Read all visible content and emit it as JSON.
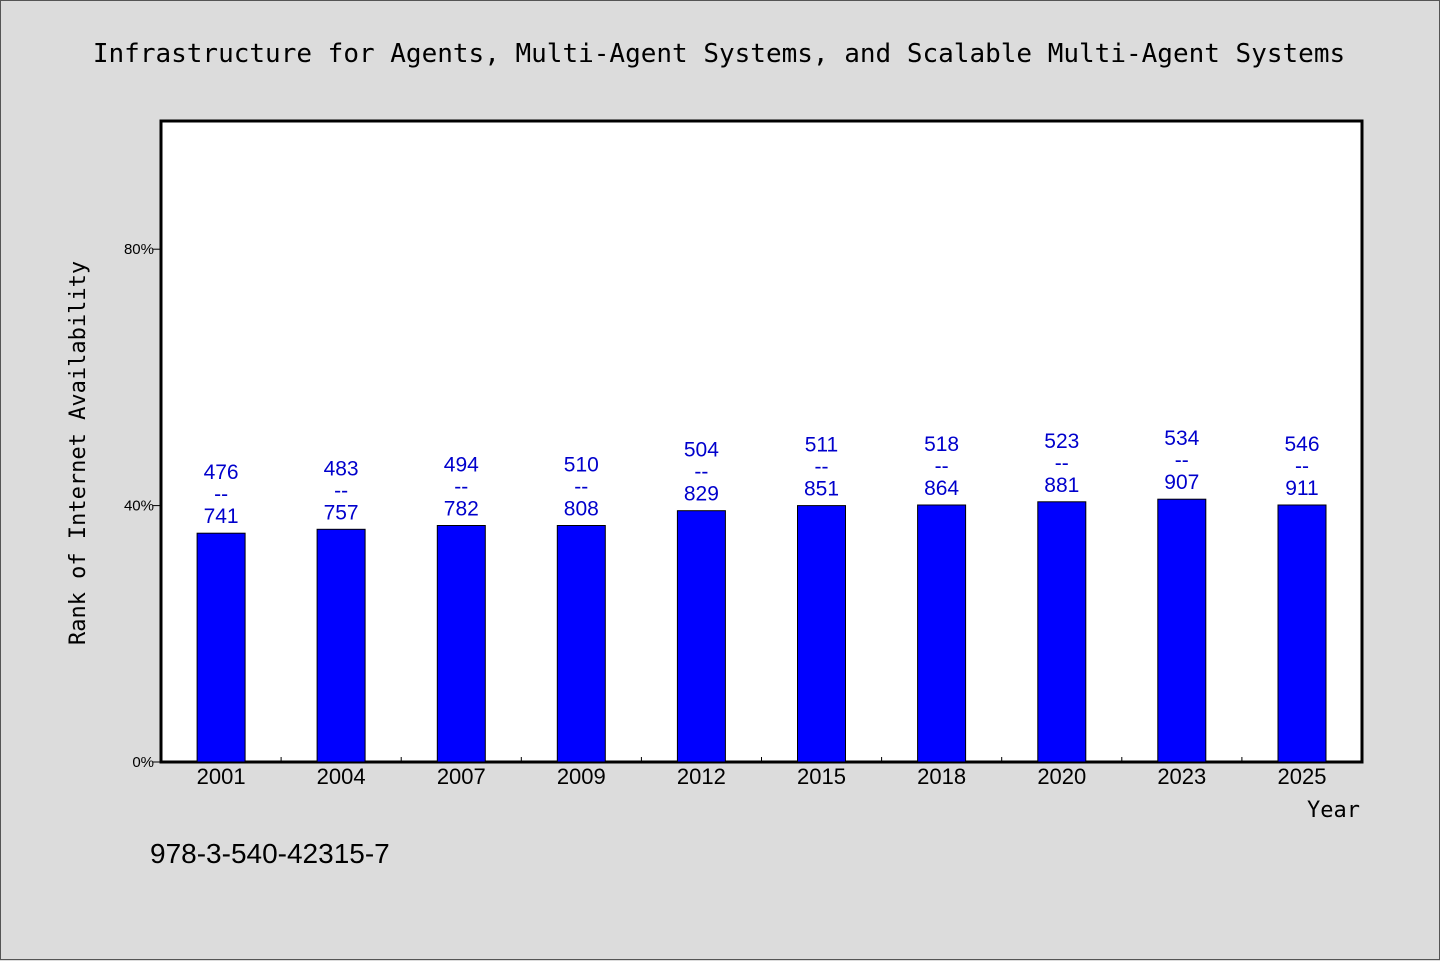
{
  "chart_data": {
    "type": "bar",
    "title": "Infrastructure for Agents, Multi-Agent Systems, and Scalable Multi-Agent Systems",
    "xlabel": "Year",
    "ylabel": "Rank of Internet Availability",
    "categories": [
      "2001",
      "2004",
      "2007",
      "2009",
      "2012",
      "2015",
      "2018",
      "2020",
      "2023",
      "2025"
    ],
    "series": [
      {
        "values": [
          0.357,
          0.363,
          0.369,
          0.369,
          0.392,
          0.4,
          0.401,
          0.406,
          0.41,
          0.401
        ]
      }
    ],
    "data_labels": [
      {
        "top": "476",
        "sep": "--",
        "bottom": "741"
      },
      {
        "top": "483",
        "sep": "--",
        "bottom": "757"
      },
      {
        "top": "494",
        "sep": "--",
        "bottom": "782"
      },
      {
        "top": "510",
        "sep": "--",
        "bottom": "808"
      },
      {
        "top": "504",
        "sep": "--",
        "bottom": "829"
      },
      {
        "top": "511",
        "sep": "--",
        "bottom": "851"
      },
      {
        "top": "518",
        "sep": "--",
        "bottom": "864"
      },
      {
        "top": "523",
        "sep": "--",
        "bottom": "881"
      },
      {
        "top": "534",
        "sep": "--",
        "bottom": "907"
      },
      {
        "top": "546",
        "sep": "--",
        "bottom": "911"
      }
    ],
    "yticks": [
      {
        "value": 0,
        "label": "0%"
      },
      {
        "value": 0.4,
        "label": "40%"
      },
      {
        "value": 0.8,
        "label": "80%"
      }
    ],
    "ylim": [
      0,
      1
    ],
    "grid": false,
    "colors": {
      "bar": "#0000ff",
      "bar_edge": "#000000",
      "data_label": "#0000cc",
      "plot_bg": "#ffffff",
      "page_bg": "#dcdcdc"
    }
  },
  "footer": {
    "isbn": "978-3-540-42315-7"
  }
}
